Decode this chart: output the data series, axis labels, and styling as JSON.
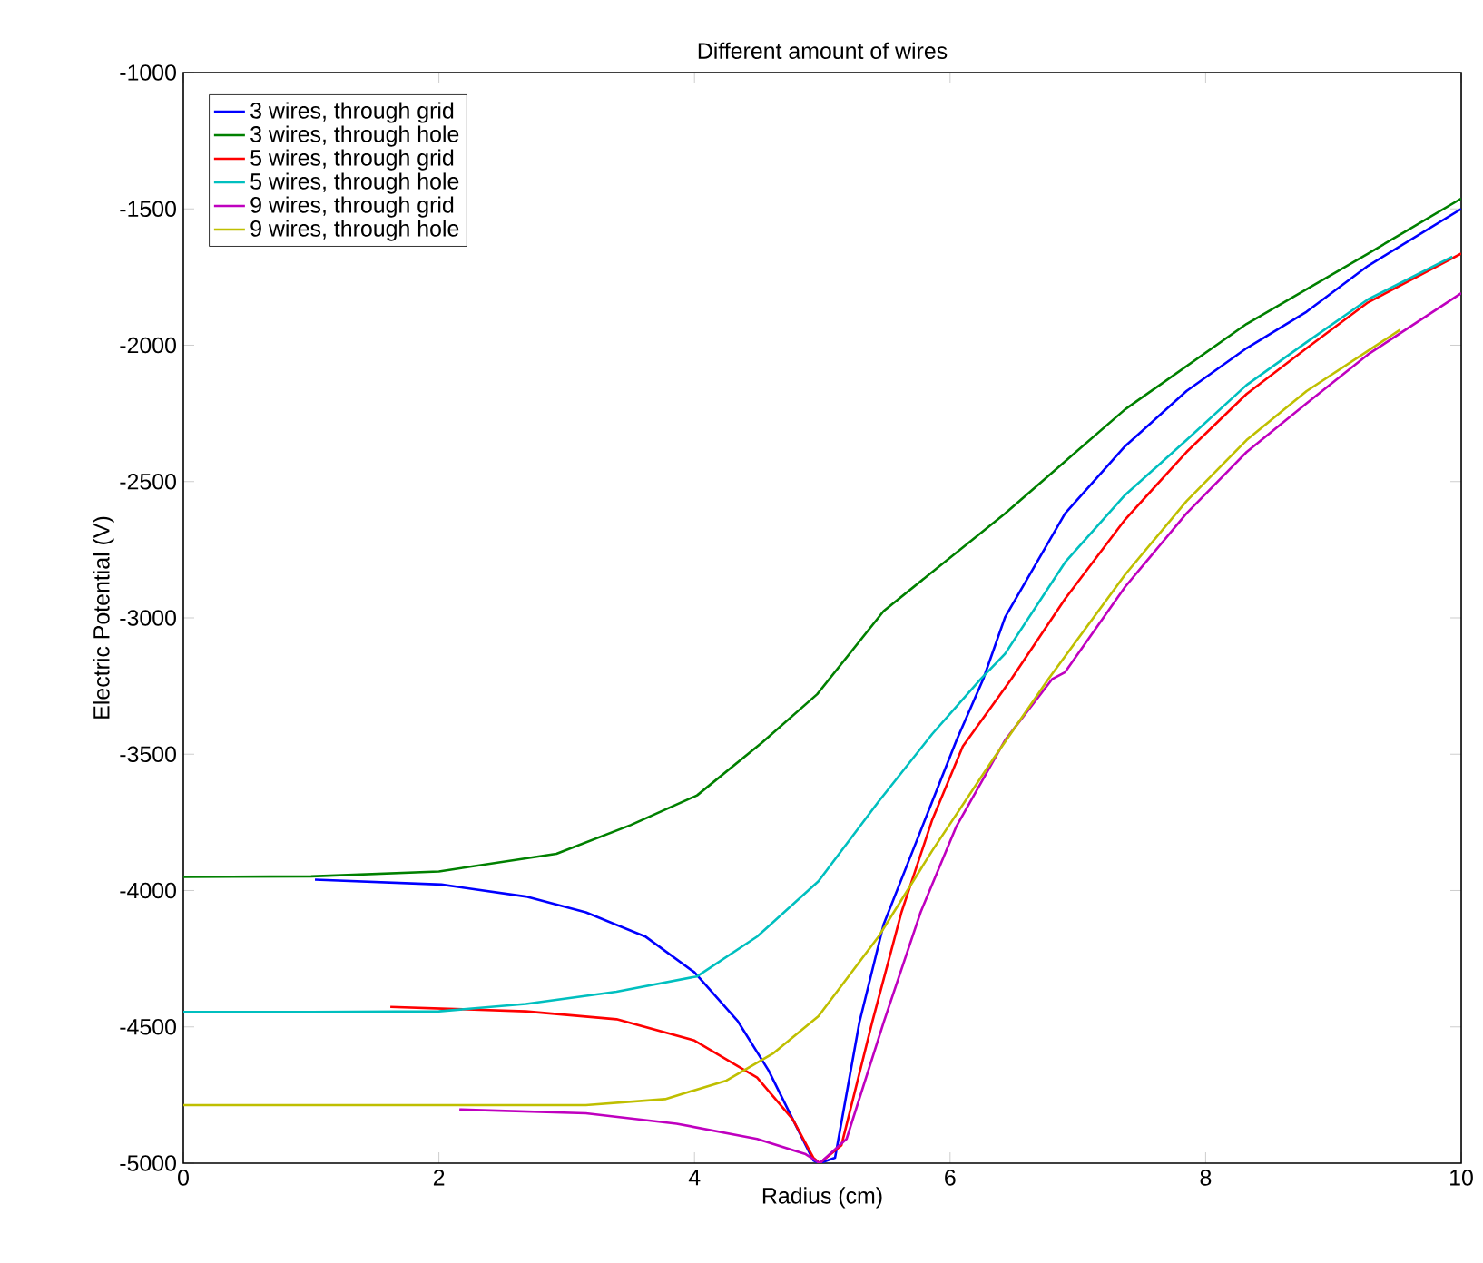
{
  "chart_data": {
    "type": "line",
    "title": "Different amount of wires",
    "xlabel": "Radius (cm)",
    "ylabel": "Electric Potential (V)",
    "xlim": [
      0,
      10
    ],
    "ylim": [
      -5000,
      -1000
    ],
    "xticks": [
      0,
      2,
      4,
      6,
      8,
      10
    ],
    "yticks": [
      -5000,
      -4500,
      -4000,
      -3500,
      -3000,
      -2500,
      -2000,
      -1500,
      -1000
    ],
    "grid": false,
    "legend": "top left",
    "marker": "none",
    "line_style": "solid",
    "series": [
      {
        "name": "3 wires, through grid",
        "color": "#0000ff",
        "x": [
          1.03,
          2.02,
          2.68,
          3.15,
          3.62,
          4.0,
          4.34,
          4.58,
          4.77,
          4.93,
          4.98,
          5.1,
          5.29,
          5.48,
          5.67,
          5.86,
          6.05,
          6.26,
          6.43,
          6.9,
          7.37,
          7.85,
          8.32,
          8.79,
          9.27,
          10
        ],
        "values": [
          -3960,
          -3978,
          -4022,
          -4080,
          -4170,
          -4300,
          -4480,
          -4660,
          -4840,
          -4990,
          -5000,
          -4980,
          -4484,
          -4124,
          -3899,
          -3674,
          -3449,
          -3224,
          -2998,
          -2617,
          -2370,
          -2168,
          -2011,
          -1877,
          -1709,
          -1500
        ]
      },
      {
        "name": "3 wires, through hole",
        "color": "#008000",
        "x": [
          0,
          1,
          2,
          2.92,
          3.5,
          4.02,
          4.53,
          4.96,
          5.48,
          6.43,
          7.37,
          8.32,
          9.27,
          10
        ],
        "values": [
          -3950,
          -3948,
          -3930,
          -3865,
          -3760,
          -3651,
          -3457,
          -3280,
          -2975,
          -2617,
          -2235,
          -1922,
          -1664,
          -1462
        ]
      },
      {
        "name": "5 wires, through grid",
        "color": "#ff0000",
        "x": [
          1.62,
          2.68,
          3.39,
          4.0,
          4.49,
          4.77,
          4.93,
          4.98,
          5.15,
          5.39,
          5.62,
          5.86,
          6.1,
          6.48,
          6.9,
          7.37,
          7.85,
          8.32,
          8.79,
          9.27,
          10
        ],
        "values": [
          -4427,
          -4443,
          -4472,
          -4550,
          -4686,
          -4840,
          -4980,
          -5000,
          -4934,
          -4484,
          -4079,
          -3741,
          -3471,
          -3224,
          -2930,
          -2639,
          -2392,
          -2179,
          -2011,
          -1843,
          -1664
        ]
      },
      {
        "name": "5 wires, through hole",
        "color": "#00bfbf",
        "x": [
          0,
          1,
          2,
          2.68,
          3.39,
          4.02,
          4.49,
          4.97,
          5.44,
          5.86,
          6.24,
          6.43,
          6.9,
          7.37,
          7.85,
          8.32,
          8.79,
          9.27,
          9.93
        ],
        "values": [
          -4445,
          -4445,
          -4443,
          -4416,
          -4371,
          -4315,
          -4169,
          -3966,
          -3674,
          -3426,
          -3224,
          -3132,
          -2796,
          -2549,
          -2348,
          -2146,
          -1989,
          -1832,
          -1675
        ]
      },
      {
        "name": "9 wires, through grid",
        "color": "#bf00bf",
        "x": [
          2.16,
          3.15,
          3.86,
          4.49,
          4.87,
          4.98,
          5.19,
          5.48,
          5.77,
          6.05,
          6.43,
          6.8,
          6.9,
          7.37,
          7.85,
          8.32,
          8.79,
          9.27,
          10
        ],
        "values": [
          -4803,
          -4817,
          -4855,
          -4911,
          -4967,
          -5000,
          -4911,
          -4484,
          -4079,
          -3764,
          -3449,
          -3224,
          -3199,
          -2886,
          -2617,
          -2392,
          -2213,
          -2034,
          -1809
        ]
      },
      {
        "name": "9 wires, through hole",
        "color": "#bfbf00",
        "x": [
          0,
          1,
          2,
          3.15,
          3.77,
          4.25,
          4.62,
          4.97,
          5.44,
          5.86,
          6.34,
          6.77,
          7.37,
          7.85,
          8.32,
          8.79,
          9.52
        ],
        "values": [
          -4787,
          -4787,
          -4787,
          -4787,
          -4765,
          -4697,
          -4596,
          -4461,
          -4169,
          -3854,
          -3516,
          -3224,
          -2841,
          -2572,
          -2348,
          -2168,
          -1944
        ]
      }
    ]
  }
}
